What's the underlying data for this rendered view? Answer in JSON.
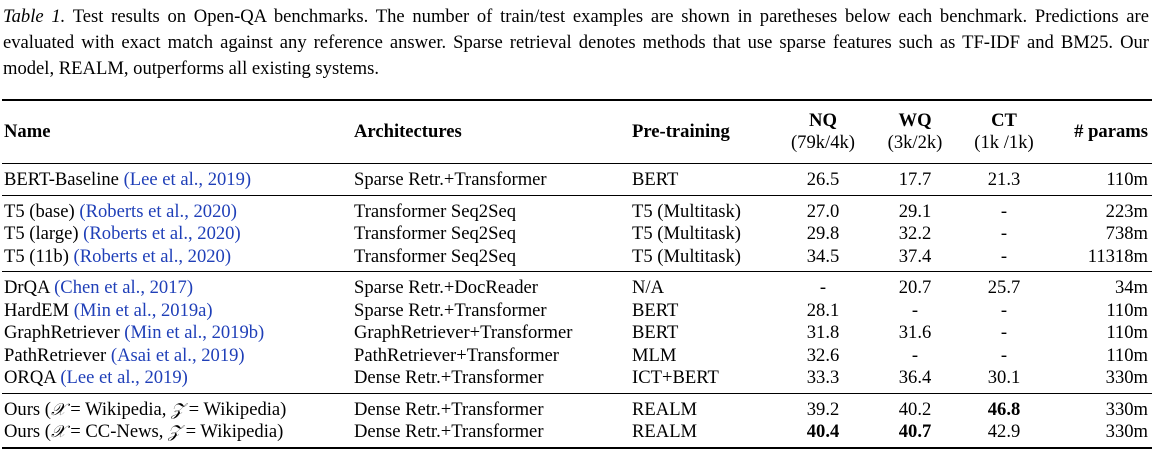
{
  "caption": {
    "label": "Table 1.",
    "text": "Test results on Open-QA benchmarks. The number of train/test examples are shown in paretheses below each benchmark. Predictions are evaluated with exact match against any reference answer. Sparse retrieval denotes methods that use sparse features such as TF-IDF and BM25. Our model, REALM, outperforms all existing systems."
  },
  "header": {
    "name": "Name",
    "arch": "Architectures",
    "pre": "Pre-training",
    "nq": "NQ",
    "nq_sub": "(79k/4k)",
    "wq": "WQ",
    "wq_sub": "(3k/2k)",
    "ct": "CT",
    "ct_sub": "(1k /1k)",
    "params": "# params"
  },
  "rows": [
    {
      "name": "BERT-Baseline",
      "cite": "(Lee et al., 2019)",
      "arch": "Sparse Retr.+Transformer",
      "pre": "BERT",
      "nq": "26.5",
      "wq": "17.7",
      "ct": "21.3",
      "params": "110m"
    },
    {
      "name": "T5 (base)",
      "cite": "(Roberts et al., 2020)",
      "arch": "Transformer Seq2Seq",
      "pre": "T5 (Multitask)",
      "nq": "27.0",
      "wq": "29.1",
      "ct": "-",
      "params": "223m"
    },
    {
      "name": "T5 (large)",
      "cite": "(Roberts et al., 2020)",
      "arch": "Transformer Seq2Seq",
      "pre": "T5 (Multitask)",
      "nq": "29.8",
      "wq": "32.2",
      "ct": "-",
      "params": "738m"
    },
    {
      "name": "T5 (11b)",
      "cite": "(Roberts et al., 2020)",
      "arch": "Transformer Seq2Seq",
      "pre": "T5 (Multitask)",
      "nq": "34.5",
      "wq": "37.4",
      "ct": "-",
      "params": "11318m"
    },
    {
      "name": "DrQA",
      "cite": "(Chen et al., 2017)",
      "arch": "Sparse Retr.+DocReader",
      "pre": "N/A",
      "nq": "-",
      "wq": "20.7",
      "ct": "25.7",
      "params": "34m"
    },
    {
      "name": "HardEM",
      "cite": "(Min et al., 2019a)",
      "arch": "Sparse Retr.+Transformer",
      "pre": "BERT",
      "nq": "28.1",
      "wq": "-",
      "ct": "-",
      "params": "110m"
    },
    {
      "name": "GraphRetriever",
      "cite": "(Min et al., 2019b)",
      "arch": "GraphRetriever+Transformer",
      "pre": "BERT",
      "nq": "31.8",
      "wq": "31.6",
      "ct": "-",
      "params": "110m"
    },
    {
      "name": "PathRetriever",
      "cite": "(Asai et al., 2019)",
      "arch": "PathRetriever+Transformer",
      "pre": "MLM",
      "nq": "32.6",
      "wq": "-",
      "ct": "-",
      "params": "110m"
    },
    {
      "name": "ORQA",
      "cite": "(Lee et al., 2019)",
      "arch": "Dense Retr.+Transformer",
      "pre": "ICT+BERT",
      "nq": "33.3",
      "wq": "36.4",
      "ct": "30.1",
      "params": "330m"
    },
    {
      "name_pre": "Ours (",
      "x_sym": "𝒳",
      "x_val": " = Wikipedia, ",
      "z_sym": "𝒵",
      "z_val": " = Wikipedia)",
      "arch": "Dense Retr.+Transformer",
      "pre": "REALM",
      "nq": "39.2",
      "wq": "40.2",
      "ct": "46.8",
      "params": "330m"
    },
    {
      "name_pre": "Ours (",
      "x_sym": "𝒳",
      "x_val": " = CC-News, ",
      "z_sym": "𝒵",
      "z_val": " = Wikipedia)",
      "arch": "Dense Retr.+Transformer",
      "pre": "REALM",
      "nq": "40.4",
      "wq": "40.7",
      "ct": "42.9",
      "params": "330m"
    }
  ]
}
